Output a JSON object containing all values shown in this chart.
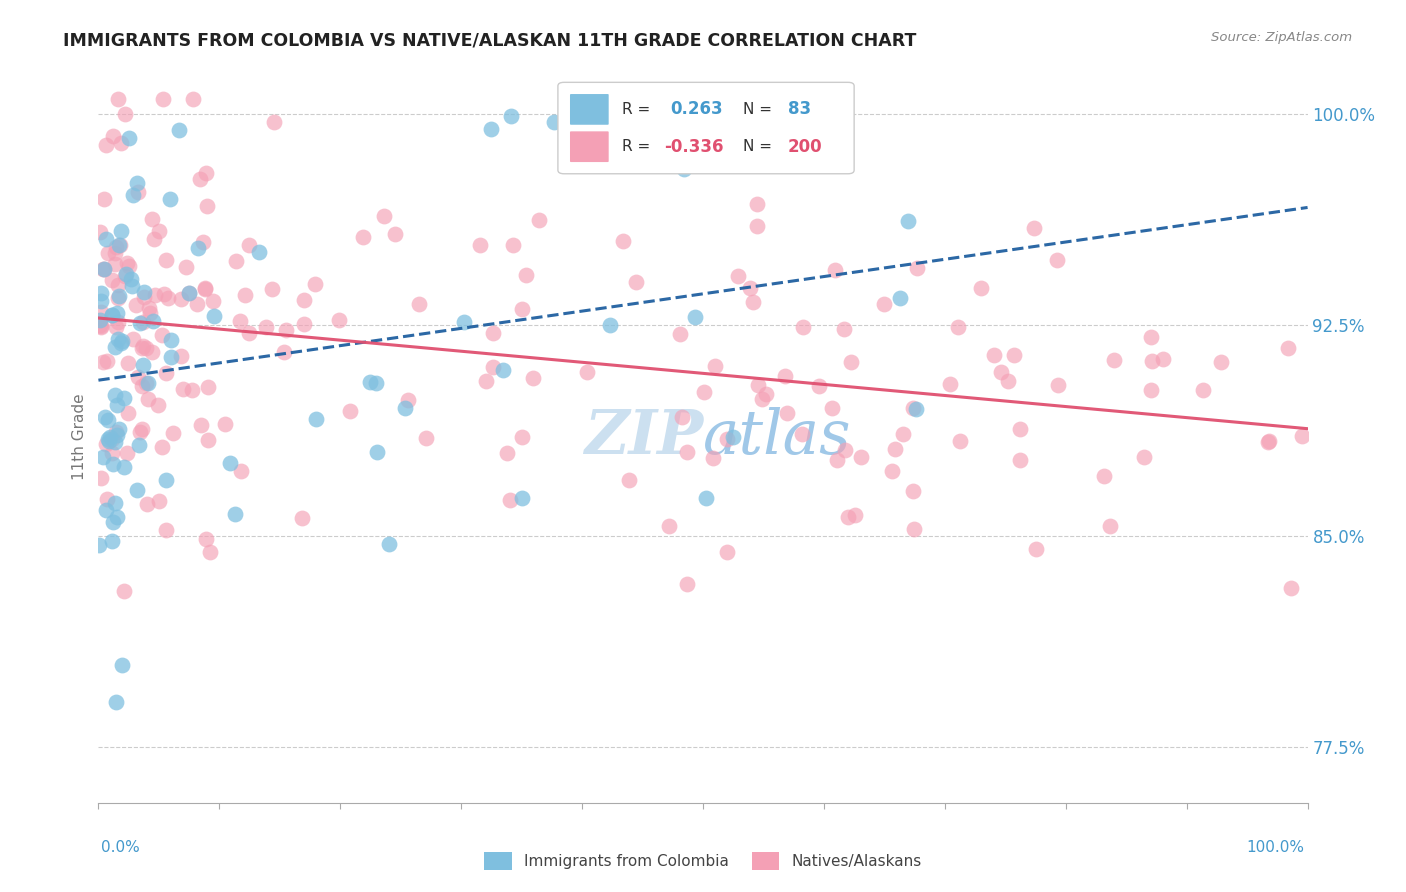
{
  "title": "IMMIGRANTS FROM COLOMBIA VS NATIVE/ALASKAN 11TH GRADE CORRELATION CHART",
  "source": "Source: ZipAtlas.com",
  "ylabel": "11th Grade",
  "y_ticks": [
    77.5,
    85.0,
    92.5,
    100.0
  ],
  "y_tick_labels": [
    "77.5%",
    "85.0%",
    "92.5%",
    "100.0%"
  ],
  "xlim": [
    0.0,
    100.0
  ],
  "ylim": [
    75.5,
    101.5
  ],
  "color_blue": "#7fbfdf",
  "color_pink": "#f4a0b5",
  "color_blue_line": "#2060a0",
  "color_pink_line": "#e05070",
  "watermark_color": "#cce0f0",
  "legend_box_color": "#f8f8ff",
  "legend_box_edge": "#cccccc"
}
